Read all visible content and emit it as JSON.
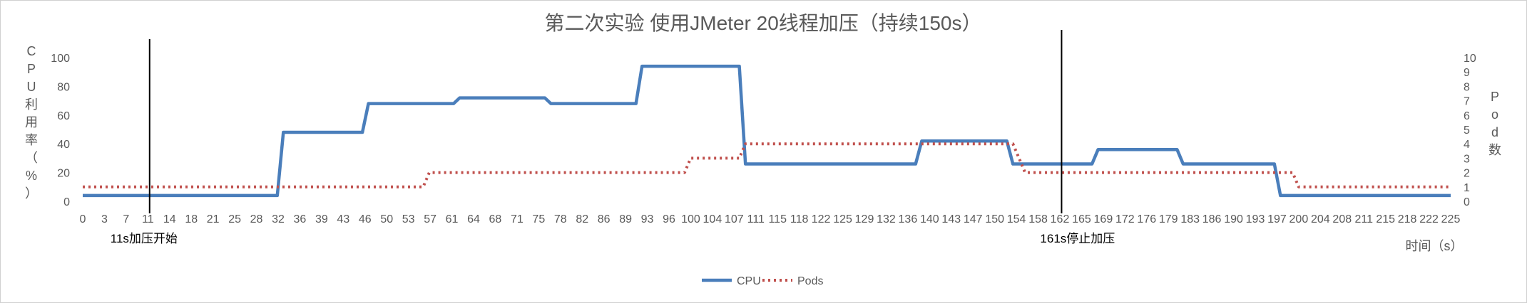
{
  "chart_data": {
    "type": "line",
    "title": "第二次实验 使用JMeter 20线程加压（持续150s）",
    "xlabel": "时间（s）",
    "ylabel": "CPU利用率（%）",
    "y2label": "Pod数",
    "ylim": [
      0,
      100
    ],
    "y2lim": [
      0,
      10
    ],
    "yticks": [
      "0",
      "20",
      "40",
      "60",
      "80",
      "100"
    ],
    "y2ticks": [
      "0",
      "1",
      "2",
      "3",
      "4",
      "5",
      "6",
      "7",
      "8",
      "9",
      "10"
    ],
    "x_ticks": [
      "0",
      "3",
      "7",
      "11",
      "14",
      "18",
      "21",
      "25",
      "28",
      "32",
      "36",
      "39",
      "43",
      "46",
      "50",
      "53",
      "57",
      "61",
      "64",
      "68",
      "71",
      "75",
      "78",
      "82",
      "86",
      "89",
      "93",
      "96",
      "100",
      "104",
      "107",
      "111",
      "115",
      "118",
      "122",
      "125",
      "129",
      "132",
      "136",
      "140",
      "143",
      "147",
      "150",
      "154",
      "158",
      "162",
      "165",
      "169",
      "172",
      "176",
      "179",
      "183",
      "186",
      "190",
      "193",
      "197",
      "200",
      "204",
      "208",
      "211",
      "215",
      "218",
      "222",
      "225"
    ],
    "legend_position": "bottom",
    "series": [
      {
        "name": "CPU",
        "axis": "left",
        "color": "#4a7ebb",
        "style": "solid",
        "points": [
          [
            0,
            4
          ],
          [
            32,
            4
          ],
          [
            33,
            48
          ],
          [
            46,
            48
          ],
          [
            47,
            68
          ],
          [
            61,
            68
          ],
          [
            62,
            72
          ],
          [
            76,
            72
          ],
          [
            77,
            68
          ],
          [
            91,
            68
          ],
          [
            92,
            94
          ],
          [
            108,
            94
          ],
          [
            109,
            26
          ],
          [
            137,
            26
          ],
          [
            138,
            42
          ],
          [
            152,
            42
          ],
          [
            153,
            26
          ],
          [
            166,
            26
          ],
          [
            167,
            36
          ],
          [
            180,
            36
          ],
          [
            181,
            26
          ],
          [
            196,
            26
          ],
          [
            197,
            4
          ],
          [
            225,
            4
          ]
        ]
      },
      {
        "name": "Pods",
        "axis": "right",
        "color": "#c0504d",
        "style": "dotted",
        "points": [
          [
            0,
            1
          ],
          [
            56,
            1
          ],
          [
            57,
            2
          ],
          [
            99,
            2
          ],
          [
            100,
            3
          ],
          [
            108,
            3
          ],
          [
            109,
            4
          ],
          [
            153,
            4
          ],
          [
            155,
            2
          ],
          [
            199,
            2
          ],
          [
            200,
            1
          ],
          [
            225,
            1
          ]
        ]
      }
    ],
    "annotations": [
      {
        "x": 11,
        "text": "11s加压开始"
      },
      {
        "x": 161,
        "text": "161s停止加压"
      }
    ]
  },
  "colors": {
    "cpu_line": "#4a7ebb",
    "pods_line": "#c0504d",
    "marker_line": "#000000",
    "text": "#595959",
    "grid": "#d9d9d9"
  }
}
